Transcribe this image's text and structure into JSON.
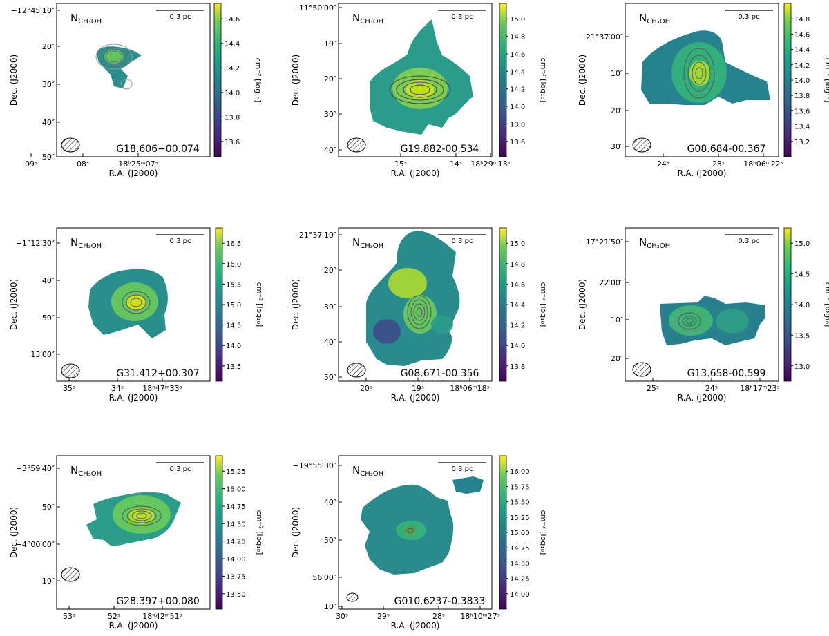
{
  "chart_data": [
    {
      "type": "heatmap",
      "map_label": "N",
      "map_label_sub": "CH₃OH",
      "source": "G18.606−00.074",
      "scalebar": "0.3 pc",
      "ylabel": "Dec. (J2000)",
      "xlabel": "R.A. (J2000)",
      "colorbar_label": "cm⁻² [log₁₀]",
      "colorbar_ticks": [
        "14.6",
        "14.4",
        "14.2",
        "14.0",
        "13.8",
        "13.6"
      ],
      "y_ticks": [
        "−12°45′10″",
        "20″",
        "30″",
        "40″",
        "50″"
      ],
      "x_ticks": [
        "09ˢ",
        "08ˢ",
        "18ʰ25ᵐ07ˢ"
      ]
    },
    {
      "type": "heatmap",
      "map_label": "N",
      "map_label_sub": "CH₃OH",
      "source": "G19.882-00.534",
      "scalebar": "0.3 pc",
      "ylabel": "Dec. (J2000)",
      "xlabel": "R.A. (J2000)",
      "colorbar_label": "cm⁻² [log₁₀]",
      "colorbar_ticks": [
        "15.0",
        "14.8",
        "14.6",
        "14.4",
        "14.2",
        "14.0",
        "13.8",
        "13.6"
      ],
      "y_ticks": [
        "−11°50′00″",
        "10″",
        "20″",
        "30″",
        "40″"
      ],
      "x_ticks": [
        "15ˢ",
        "14ˢ",
        "18ʰ29ᵐ13ˢ"
      ]
    },
    {
      "type": "heatmap",
      "map_label": "N",
      "map_label_sub": "CH₃OH",
      "source": "G08.684-00.367",
      "scalebar": "0.3 pc",
      "ylabel": "Dec. (J2000)",
      "xlabel": "R.A. (J2000)",
      "colorbar_label": "cm⁻² [log₁₀]",
      "colorbar_ticks": [
        "14.8",
        "14.6",
        "14.4",
        "14.2",
        "14.0",
        "13.8",
        "13.6",
        "13.4",
        "13.2"
      ],
      "y_ticks": [
        "−21°37′00″",
        "10″",
        "20″",
        "30″"
      ],
      "x_ticks": [
        "24ˢ",
        "23ˢ",
        "18ʰ06ᵐ22ˢ"
      ]
    },
    {
      "type": "heatmap",
      "map_label": "N",
      "map_label_sub": "CH₃OH",
      "source": "G31.412+00.307",
      "scalebar": "0.3 pc",
      "ylabel": "Dec. (J2000)",
      "xlabel": "R.A. (J2000)",
      "colorbar_label": "cm⁻² [log₁₀]",
      "colorbar_ticks": [
        "16.5",
        "16.0",
        "15.5",
        "15.0",
        "14.5",
        "14.0",
        "13.5"
      ],
      "y_ticks": [
        "−1°12′30″",
        "40″",
        "50″",
        "13′00″"
      ],
      "x_ticks": [
        "35ˢ",
        "34ˢ",
        "18ʰ47ᵐ33ˢ"
      ]
    },
    {
      "type": "heatmap",
      "map_label": "N",
      "map_label_sub": "CH₃OH",
      "source": "G08.671-00.356",
      "scalebar": "0.3 pc",
      "ylabel": "Dec. (J2000)",
      "xlabel": "R.A. (J2000)",
      "colorbar_label": "cm⁻² [log₁₀]",
      "colorbar_ticks": [
        "15.0",
        "14.8",
        "14.6",
        "14.4",
        "14.2",
        "14.0",
        "13.8"
      ],
      "y_ticks": [
        "−21°37′10″",
        "20″",
        "30″",
        "40″",
        "50″"
      ],
      "x_ticks": [
        "20ˢ",
        "19ˢ",
        "18ʰ06ᵐ18ˢ"
      ]
    },
    {
      "type": "heatmap",
      "map_label": "N",
      "map_label_sub": "CH₃OH",
      "source": "G13.658-00.599",
      "scalebar": "0.3 pc",
      "ylabel": "Dec. (J2000)",
      "xlabel": "R.A. (J2000)",
      "colorbar_label": "cm⁻² [log₁₀]",
      "colorbar_ticks": [
        "15.0",
        "14.5",
        "14.0",
        "13.5",
        "13.0"
      ],
      "y_ticks": [
        "−17°21′50″",
        "22′00″",
        "10″",
        "20″"
      ],
      "x_ticks": [
        "25ˢ",
        "24ˢ",
        "18ʰ17ᵐ23ˢ"
      ]
    },
    {
      "type": "heatmap",
      "map_label": "N",
      "map_label_sub": "CH₃OH",
      "source": "G28.397+00.080",
      "scalebar": "0.3 pc",
      "ylabel": "Dec. (J2000)",
      "xlabel": "R.A. (J2000)",
      "colorbar_label": "cm⁻² [log₁₀]",
      "colorbar_ticks": [
        "15.25",
        "15.00",
        "14.75",
        "14.50",
        "14.25",
        "14.00",
        "13.75",
        "13.50"
      ],
      "y_ticks": [
        "−3°59′40″",
        "50″",
        "−4°00′00″",
        "10″"
      ],
      "x_ticks": [
        "53ˢ",
        "52ˢ",
        "18ʰ42ᵐ51ˢ"
      ]
    },
    {
      "type": "heatmap",
      "map_label": "N",
      "map_label_sub": "CH₃OH",
      "source": "G010.6237-0.3833",
      "scalebar": "0.3 pc",
      "ylabel": "Dec. (J2000)",
      "xlabel": "R.A. (J2000)",
      "colorbar_label": "cm⁻² [log₁₀]",
      "colorbar_ticks": [
        "16.00",
        "15.75",
        "15.50",
        "15.25",
        "15.00",
        "14.75",
        "14.50",
        "14.25",
        "14.00"
      ],
      "y_ticks": [
        "−19°55′30″",
        "40″",
        "50″",
        "56′00″",
        "10″"
      ],
      "x_ticks": [
        "30ˢ",
        "29ˢ",
        "28ˢ",
        "18ʰ10ᵐ27ˢ"
      ]
    }
  ]
}
